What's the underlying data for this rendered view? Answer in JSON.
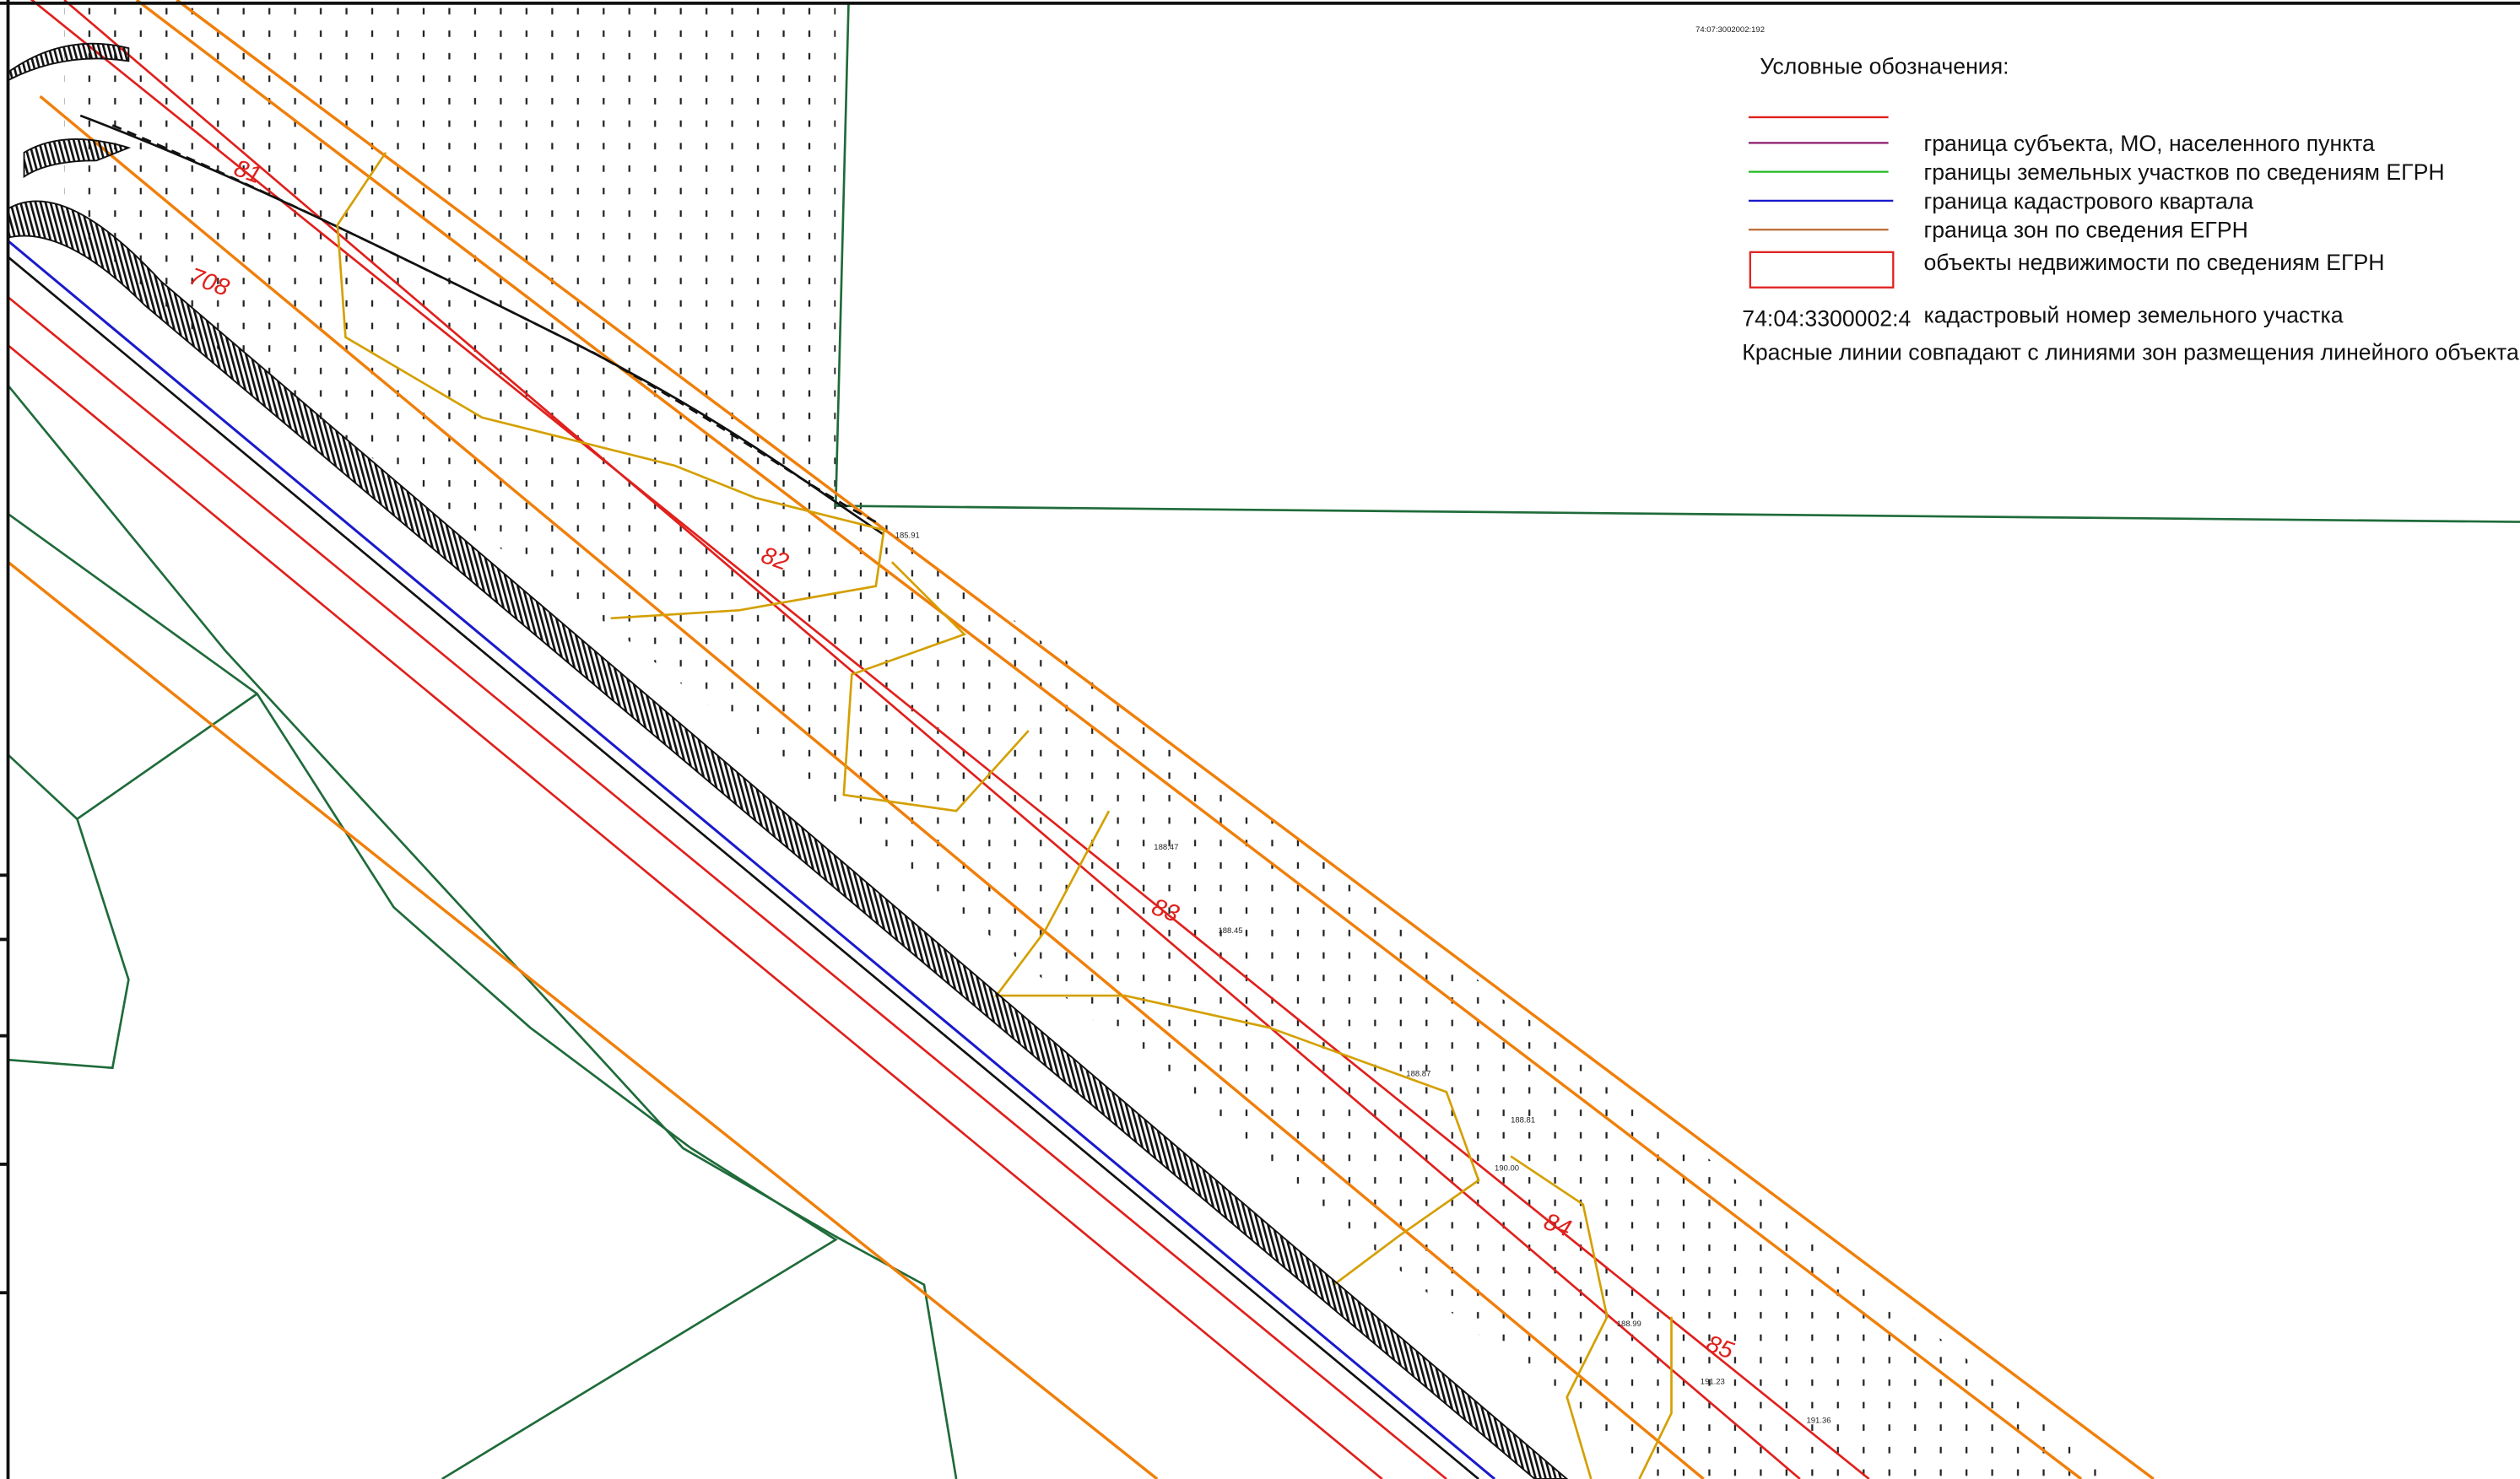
{
  "header": {
    "code": "74:07:3002002:192"
  },
  "legend": {
    "title": "Условные обозначения:",
    "items": [
      "граница субъекта, МО, населенного пункта",
      "границы земельных участков по сведениям ЕГРН",
      "граница кадастрового квартала",
      "граница зон по сведения ЕГРН",
      "объекты недвижимости по сведениям ЕГРН"
    ],
    "cadastral_example": "74:04:3300002:4",
    "cadastral_caption": "кадастровый номер земельного участка",
    "note": "Красные линии совпадают с линиями зон размещения линейного объекта"
  },
  "map": {
    "pickets": [
      "81",
      "82",
      "83",
      "84",
      "85"
    ],
    "section": "708",
    "elevations": [
      "185.91",
      "188.47",
      "188.45",
      "188.87",
      "188.81",
      "190.00",
      "188.99",
      "191.23",
      "191.36"
    ]
  }
}
